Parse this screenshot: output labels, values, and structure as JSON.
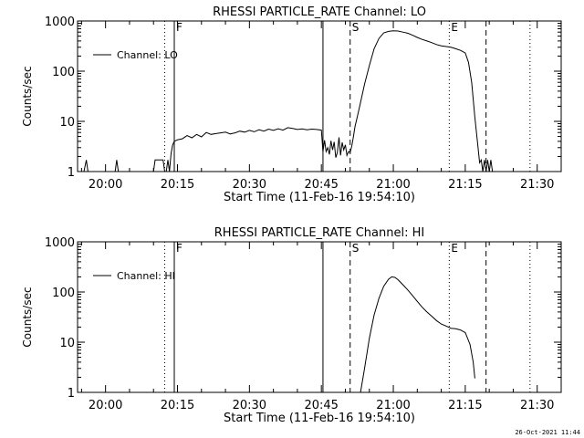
{
  "timestamp": "26-Oct-2021 11:44",
  "chart_data": [
    {
      "type": "line",
      "title": "RHESSI PARTICLE_RATE Channel: LO",
      "xlabel": "Start Time (11-Feb-16 19:54:10)",
      "ylabel": "Counts/sec",
      "y_scale": "log",
      "ylim": [
        1,
        1000
      ],
      "xlim": [
        "19:54:10",
        "21:35:00"
      ],
      "x_ticks": [
        "20:00",
        "20:15",
        "20:30",
        "20:45",
        "21:00",
        "21:15",
        "21:30"
      ],
      "y_ticks": [
        "1",
        "10",
        "100",
        "1000"
      ],
      "legend": {
        "label": "Channel: LO",
        "position": "top-left"
      },
      "markers": [
        {
          "time": "20:12:20",
          "style": "dotted",
          "label": ""
        },
        {
          "time": "20:14:20",
          "style": "solid",
          "label": "F"
        },
        {
          "time": "20:45:20",
          "style": "solid",
          "label": ""
        },
        {
          "time": "20:51:00",
          "style": "dashed",
          "label": "S"
        },
        {
          "time": "21:11:40",
          "style": "dotted",
          "label": "E"
        },
        {
          "time": "21:19:20",
          "style": "dashed",
          "label": ""
        },
        {
          "time": "21:28:30",
          "style": "dotted",
          "label": ""
        }
      ],
      "series": [
        {
          "name": "Channel: LO",
          "x": [
            "19:55:30",
            "19:56:00",
            "19:56:20",
            "20:02:00",
            "20:02:20",
            "20:02:40",
            "20:10:00",
            "20:10:20",
            "20:12:00",
            "20:12:20",
            "20:12:40",
            "20:13:00",
            "20:13:20",
            "20:13:40",
            "20:14:00",
            "20:14:20",
            "20:15:00",
            "20:16:00",
            "20:17:00",
            "20:18:00",
            "20:19:00",
            "20:20:00",
            "20:21:00",
            "20:22:00",
            "20:23:00",
            "20:24:00",
            "20:25:00",
            "20:26:00",
            "20:27:00",
            "20:28:00",
            "20:29:00",
            "20:30:00",
            "20:31:00",
            "20:32:00",
            "20:33:00",
            "20:34:00",
            "20:35:00",
            "20:36:00",
            "20:37:00",
            "20:38:00",
            "20:39:00",
            "20:40:00",
            "20:41:00",
            "20:42:00",
            "20:43:00",
            "20:44:00",
            "20:45:00",
            "20:45:20",
            "20:45:40",
            "20:46:00",
            "20:46:20",
            "20:46:40",
            "20:47:00",
            "20:47:20",
            "20:47:40",
            "20:48:00",
            "20:48:20",
            "20:48:40",
            "20:49:00",
            "20:49:20",
            "20:49:40",
            "20:50:00",
            "20:50:20",
            "20:50:40",
            "20:51:00",
            "20:51:20",
            "20:51:40",
            "20:52:00",
            "20:52:20",
            "20:53:00",
            "20:54:00",
            "20:55:00",
            "20:56:00",
            "20:57:00",
            "20:58:00",
            "20:59:00",
            "21:00:00",
            "21:01:00",
            "21:02:00",
            "21:03:00",
            "21:04:00",
            "21:05:00",
            "21:06:00",
            "21:07:00",
            "21:08:00",
            "21:09:00",
            "21:10:00",
            "21:11:00",
            "21:12:00",
            "21:13:00",
            "21:14:00",
            "21:15:00",
            "21:15:40",
            "21:16:20",
            "21:17:00",
            "21:17:40",
            "21:18:00",
            "21:18:20",
            "21:18:40",
            "21:19:00",
            "21:19:20",
            "21:19:40",
            "21:20:00",
            "21:20:20",
            "21:20:40",
            "21:21:00",
            "21:21:20",
            "21:21:40",
            "21:22:00"
          ],
          "values": [
            1,
            1.7,
            1,
            1,
            1.7,
            1,
            1,
            1.7,
            1.7,
            1,
            1,
            1.7,
            1,
            2.3,
            3.4,
            4,
            4.3,
            4.5,
            5.2,
            4.7,
            5.5,
            4.9,
            6,
            5.5,
            5.7,
            5.9,
            6.1,
            5.6,
            5.9,
            6.4,
            6.1,
            6.6,
            6.2,
            6.8,
            6.4,
            7,
            6.6,
            7.1,
            6.7,
            7.5,
            7.2,
            6.9,
            7.1,
            6.8,
            7,
            6.9,
            6.7,
            2.5,
            4.2,
            2.5,
            3,
            2.2,
            4.1,
            2.7,
            3.9,
            1.9,
            2.4,
            4.8,
            2.1,
            3.8,
            2.7,
            3.4,
            2.1,
            2.5,
            2.4,
            3.2,
            4.8,
            7.8,
            10.5,
            20,
            55,
            130,
            280,
            450,
            580,
            620,
            640,
            630,
            600,
            570,
            520,
            470,
            430,
            400,
            370,
            340,
            320,
            310,
            300,
            280,
            260,
            230,
            150,
            60,
            12,
            3,
            1.5,
            1.7,
            1,
            1.7,
            1,
            1.7,
            1,
            1.7,
            1,
            1,
            1,
            1,
            1
          ]
        }
      ]
    },
    {
      "type": "line",
      "title": "RHESSI PARTICLE_RATE Channel: HI",
      "xlabel": "Start Time (11-Feb-16 19:54:10)",
      "ylabel": "Counts/sec",
      "y_scale": "log",
      "ylim": [
        1,
        1000
      ],
      "xlim": [
        "19:54:10",
        "21:35:00"
      ],
      "x_ticks": [
        "20:00",
        "20:15",
        "20:30",
        "20:45",
        "21:00",
        "21:15",
        "21:30"
      ],
      "y_ticks": [
        "1",
        "10",
        "100",
        "1000"
      ],
      "legend": {
        "label": "Channel: HI",
        "position": "top-left"
      },
      "markers": [
        {
          "time": "20:12:20",
          "style": "dotted",
          "label": ""
        },
        {
          "time": "20:14:20",
          "style": "solid",
          "label": "F"
        },
        {
          "time": "20:45:20",
          "style": "solid",
          "label": ""
        },
        {
          "time": "20:51:00",
          "style": "dashed",
          "label": "S"
        },
        {
          "time": "21:11:40",
          "style": "dotted",
          "label": "E"
        },
        {
          "time": "21:19:20",
          "style": "dashed",
          "label": ""
        },
        {
          "time": "21:28:30",
          "style": "dotted",
          "label": ""
        }
      ],
      "series": [
        {
          "name": "Channel: HI",
          "x": [
            "20:53:10",
            "20:54:00",
            "20:55:00",
            "20:56:00",
            "20:57:00",
            "20:58:00",
            "20:59:00",
            "20:59:40",
            "21:00:20",
            "21:01:00",
            "21:02:00",
            "21:03:00",
            "21:04:00",
            "21:05:00",
            "21:06:00",
            "21:07:00",
            "21:08:00",
            "21:09:00",
            "21:10:00",
            "21:11:00",
            "21:12:00",
            "21:13:00",
            "21:14:00",
            "21:15:00",
            "21:16:00",
            "21:16:40",
            "21:17:00"
          ],
          "values": [
            1,
            3,
            12,
            35,
            75,
            130,
            180,
            200,
            195,
            175,
            140,
            110,
            85,
            65,
            50,
            40,
            33,
            27,
            23,
            21,
            19,
            18.5,
            17.5,
            15.5,
            9,
            4,
            1.9
          ]
        }
      ]
    }
  ]
}
